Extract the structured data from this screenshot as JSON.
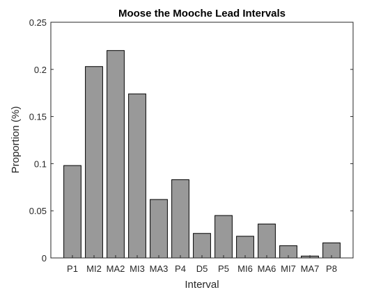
{
  "chart_data": {
    "type": "bar",
    "title": "Moose the Mooche Lead Intervals",
    "xlabel": "Interval",
    "ylabel": "Proportion (%)",
    "categories": [
      "P1",
      "MI2",
      "MA2",
      "MI3",
      "MA3",
      "P4",
      "D5",
      "P5",
      "MI6",
      "MA6",
      "MI7",
      "MA7",
      "P8"
    ],
    "values": [
      0.098,
      0.203,
      0.22,
      0.174,
      0.062,
      0.083,
      0.026,
      0.045,
      0.023,
      0.036,
      0.013,
      0.002,
      0.016
    ],
    "ylim": [
      0,
      0.25
    ],
    "yticks": [
      0,
      0.05,
      0.1,
      0.15,
      0.2,
      0.25
    ],
    "ytick_labels": [
      "0",
      "0.05",
      "0.1",
      "0.15",
      "0.2",
      "0.25"
    ],
    "grid": false,
    "bar_color": "#999999",
    "edge_color": "#000000"
  }
}
